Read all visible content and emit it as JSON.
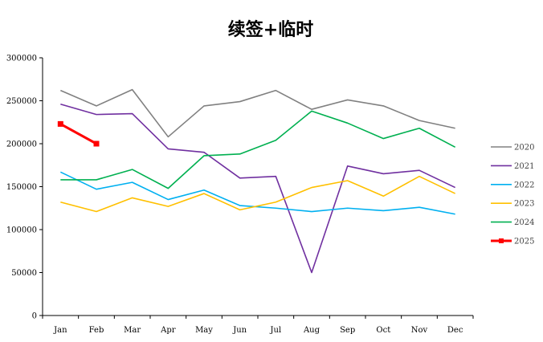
{
  "chart_data": {
    "type": "line",
    "title": "续签+临时",
    "xlabel": "",
    "ylabel": "",
    "categories": [
      "Jan",
      "Feb",
      "Mar",
      "Apr",
      "May",
      "Jun",
      "Jul",
      "Aug",
      "Sep",
      "Oct",
      "Nov",
      "Dec"
    ],
    "ylim": [
      0,
      300000
    ],
    "yticks": [
      "0",
      "50000",
      "100000",
      "150000",
      "200000",
      "250000",
      "300000"
    ],
    "grid": false,
    "legend_position": "right",
    "series": [
      {
        "name": "2020",
        "color": "#808080",
        "marker": "none",
        "values": [
          262000,
          244000,
          263000,
          208000,
          244000,
          249000,
          262000,
          240000,
          251000,
          244000,
          227000,
          218000
        ]
      },
      {
        "name": "2021",
        "color": "#7030A0",
        "marker": "none",
        "values": [
          246000,
          234000,
          235000,
          194000,
          190000,
          160000,
          162000,
          50000,
          174000,
          165000,
          169000,
          149000
        ]
      },
      {
        "name": "2022",
        "color": "#00B0F0",
        "marker": "none",
        "values": [
          167000,
          147000,
          155000,
          135000,
          146000,
          128000,
          125000,
          121000,
          125000,
          122000,
          126000,
          118000
        ]
      },
      {
        "name": "2023",
        "color": "#FFC000",
        "marker": "none",
        "values": [
          132000,
          121000,
          137000,
          127000,
          142000,
          123000,
          132000,
          149000,
          157000,
          139000,
          162000,
          142000
        ]
      },
      {
        "name": "2024",
        "color": "#00B050",
        "marker": "none",
        "values": [
          158000,
          158000,
          170000,
          148000,
          186000,
          188000,
          204000,
          238000,
          224000,
          206000,
          218000,
          196000
        ]
      },
      {
        "name": "2025",
        "color": "#FF0000",
        "marker": "square",
        "values": [
          223000,
          200000,
          null,
          null,
          null,
          null,
          null,
          null,
          null,
          null,
          null,
          null
        ]
      }
    ]
  }
}
